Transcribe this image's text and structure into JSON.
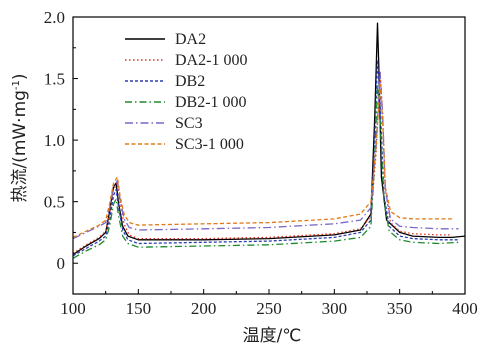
{
  "chart_data": {
    "type": "line",
    "xlabel": "温度/℃",
    "ylabel": "热流/(mW·mg",
    "ylabel_sup": "-1",
    "ylabel_close": ")",
    "xlim": [
      100,
      400
    ],
    "ylim": [
      -0.25,
      2.0
    ],
    "xticks": [
      100,
      150,
      200,
      250,
      300,
      350,
      400
    ],
    "xtick_labels": [
      "100",
      "150",
      "200",
      "250",
      "300",
      "350",
      "400"
    ],
    "yticks": [
      0,
      0.5,
      1.0,
      1.5,
      2.0
    ],
    "ytick_labels": [
      "0",
      "0.5",
      "1.0",
      "1.5",
      "2.0"
    ],
    "grid": false,
    "legend_position": "top-left",
    "series": [
      {
        "name": "DA2",
        "color": "#000000",
        "dash": "solid",
        "x": [
          100,
          110,
          120,
          125,
          128,
          131,
          133,
          135,
          138,
          142,
          150,
          200,
          250,
          300,
          320,
          328,
          331,
          333,
          334,
          336,
          340,
          350,
          360,
          380,
          390,
          400
        ],
        "y": [
          0.07,
          0.14,
          0.2,
          0.25,
          0.42,
          0.62,
          0.65,
          0.48,
          0.3,
          0.22,
          0.19,
          0.19,
          0.2,
          0.23,
          0.27,
          0.4,
          1.2,
          1.95,
          1.6,
          0.7,
          0.35,
          0.25,
          0.22,
          0.21,
          0.21,
          0.22
        ]
      },
      {
        "name": "DA2-1 000",
        "color": "#e0301e",
        "dash": "1.5,2.5",
        "x": [
          100,
          110,
          120,
          125,
          128,
          131,
          134,
          136,
          139,
          143,
          150,
          200,
          250,
          300,
          320,
          328,
          332,
          335,
          337,
          339,
          343,
          350,
          360,
          380,
          390
        ],
        "y": [
          0.08,
          0.15,
          0.21,
          0.26,
          0.4,
          0.6,
          0.65,
          0.5,
          0.32,
          0.23,
          0.2,
          0.2,
          0.21,
          0.24,
          0.28,
          0.38,
          0.9,
          1.55,
          1.2,
          0.6,
          0.33,
          0.26,
          0.24,
          0.23,
          0.23
        ]
      },
      {
        "name": "DB2",
        "color": "#2d3fb0",
        "dash": "3,2",
        "x": [
          100,
          110,
          120,
          125,
          128,
          131,
          133,
          135,
          138,
          142,
          150,
          200,
          250,
          300,
          320,
          328,
          331,
          333,
          335,
          338,
          342,
          350,
          360,
          380,
          395
        ],
        "y": [
          0.06,
          0.12,
          0.18,
          0.22,
          0.35,
          0.55,
          0.6,
          0.45,
          0.27,
          0.19,
          0.16,
          0.17,
          0.18,
          0.21,
          0.25,
          0.35,
          1.0,
          1.65,
          1.3,
          0.55,
          0.3,
          0.22,
          0.2,
          0.19,
          0.19
        ]
      },
      {
        "name": "DB2-1 000",
        "color": "#1e8a2e",
        "dash": "7,3,1.5,3",
        "x": [
          100,
          110,
          120,
          125,
          128,
          131,
          133,
          135,
          138,
          142,
          150,
          200,
          250,
          300,
          320,
          328,
          331,
          333,
          335,
          338,
          342,
          350,
          360,
          380,
          395
        ],
        "y": [
          0.04,
          0.1,
          0.15,
          0.19,
          0.3,
          0.48,
          0.52,
          0.38,
          0.22,
          0.16,
          0.13,
          0.14,
          0.15,
          0.18,
          0.21,
          0.3,
          0.85,
          1.45,
          1.15,
          0.5,
          0.26,
          0.19,
          0.17,
          0.16,
          0.17
        ]
      },
      {
        "name": "SC3",
        "color": "#7b68c8",
        "dash": "8,3,1.5,3",
        "x": [
          100,
          110,
          120,
          125,
          128,
          131,
          134,
          136,
          139,
          143,
          150,
          200,
          250,
          300,
          320,
          328,
          332,
          335,
          337,
          339,
          343,
          350,
          360,
          380,
          395
        ],
        "y": [
          0.2,
          0.25,
          0.3,
          0.33,
          0.45,
          0.62,
          0.67,
          0.52,
          0.36,
          0.29,
          0.27,
          0.28,
          0.29,
          0.32,
          0.35,
          0.45,
          0.95,
          1.55,
          1.2,
          0.6,
          0.36,
          0.3,
          0.29,
          0.28,
          0.28
        ]
      },
      {
        "name": "SC3-1 000",
        "color": "#e07a1a",
        "dash": "4,2.5",
        "x": [
          100,
          110,
          120,
          125,
          128,
          131,
          134,
          136,
          139,
          143,
          150,
          200,
          250,
          300,
          320,
          328,
          332,
          335,
          337,
          339,
          343,
          350,
          360,
          380,
          390
        ],
        "y": [
          0.21,
          0.26,
          0.31,
          0.35,
          0.48,
          0.65,
          0.7,
          0.55,
          0.4,
          0.33,
          0.31,
          0.32,
          0.33,
          0.36,
          0.4,
          0.5,
          0.95,
          1.45,
          1.15,
          0.62,
          0.42,
          0.37,
          0.36,
          0.36,
          0.36
        ]
      }
    ]
  }
}
